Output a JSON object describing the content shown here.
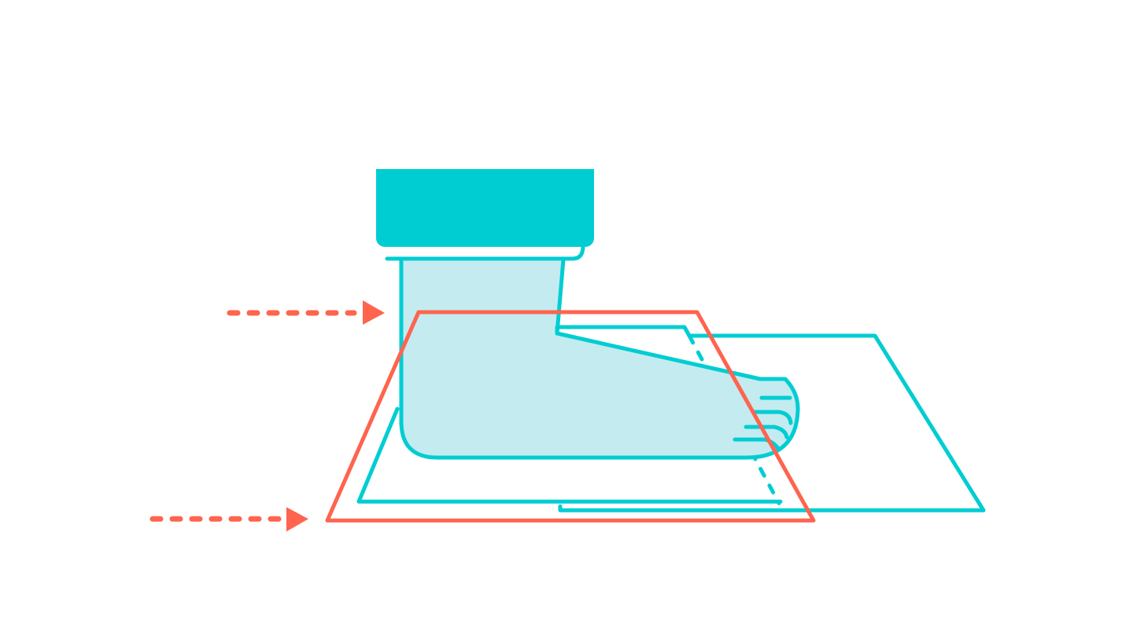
{
  "diagram": {
    "colors": {
      "background": "#ffffff",
      "teal": "#00CDD2",
      "teal_light": "#C3EBF0",
      "coral": "#FF644E"
    },
    "icons": {
      "sock": "sock-icon",
      "mat_back": "mat-back-icon",
      "mat_front": "mat-front-icon",
      "frame": "frame-highlight-icon",
      "arrow_top": "arrow-right-icon",
      "arrow_bottom": "arrow-right-icon"
    }
  }
}
